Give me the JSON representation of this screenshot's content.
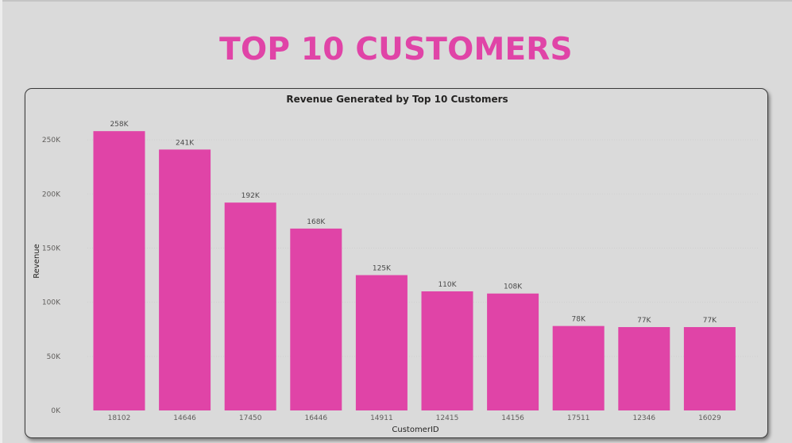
{
  "page": {
    "title": "TOP 10 CUSTOMERS"
  },
  "colors": {
    "accent": "#e044a7",
    "background": "#dadada"
  },
  "chart_data": {
    "type": "bar",
    "title": "Revenue Generated by Top 10 Customers",
    "xlabel": "CustomerID",
    "ylabel": "Revenue",
    "categories": [
      "18102",
      "14646",
      "17450",
      "16446",
      "14911",
      "12415",
      "14156",
      "17511",
      "12346",
      "16029"
    ],
    "values": [
      258000,
      241000,
      192000,
      168000,
      125000,
      110000,
      108000,
      78000,
      77000,
      77000
    ],
    "data_labels": [
      "258K",
      "241K",
      "192K",
      "168K",
      "125K",
      "110K",
      "108K",
      "78K",
      "77K",
      "77K"
    ],
    "ylim": [
      0,
      275000
    ],
    "yticks": [
      0,
      50000,
      100000,
      150000,
      200000,
      250000
    ],
    "ytick_labels": [
      "0K",
      "50K",
      "100K",
      "150K",
      "200K",
      "250K"
    ],
    "grid": true,
    "bar_color": "#e044a7"
  }
}
